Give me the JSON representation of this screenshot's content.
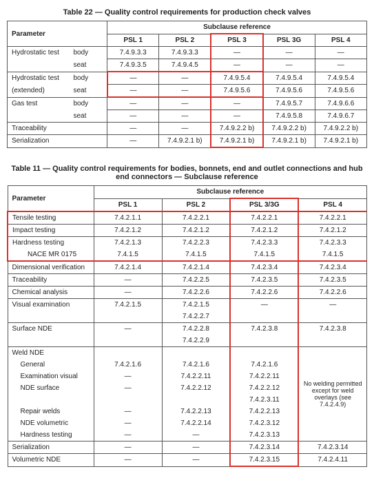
{
  "table22": {
    "title": "Table 22 — Quality control requirements for production check valves",
    "param_label": "Parameter",
    "subclause_label": "Subclause reference",
    "cols": [
      "PSL 1",
      "PSL 2",
      "PSL 3",
      "PSL 3G",
      "PSL 4"
    ],
    "rows": [
      {
        "p": "Hydrostatic test",
        "sub": "body",
        "v": [
          "7.4.9.3.3",
          "7.4.9.3.3",
          "—",
          "—",
          "—"
        ]
      },
      {
        "p": "",
        "sub": "seat",
        "v": [
          "7.4.9.3.5",
          "7.4.9.4.5",
          "—",
          "—",
          "—"
        ]
      },
      {
        "p": "Hydrostatic test",
        "sub": "body",
        "v": [
          "—",
          "—",
          "7.4.9.5.4",
          "7.4.9.5.4",
          "7.4.9.5.4"
        ]
      },
      {
        "p": "(extended)",
        "sub": "seat",
        "v": [
          "—",
          "—",
          "7.4.9.5.6",
          "7.4.9.5.6",
          "7.4.9.5.6"
        ]
      },
      {
        "p": "Gas test",
        "sub": "body",
        "v": [
          "—",
          "—",
          "—",
          "7.4.9.5.7",
          "7.4.9.6.6"
        ]
      },
      {
        "p": "",
        "sub": "seat",
        "v": [
          "—",
          "—",
          "—",
          "7.4.9.5.8",
          "7.4.9.6.7"
        ]
      },
      {
        "p": "Traceability",
        "sub": "",
        "v": [
          "—",
          "—",
          "7.4.9.2.2 b)",
          "7.4.9.2.2 b)",
          "7.4.9.2.2 b)"
        ]
      },
      {
        "p": "Serialization",
        "sub": "",
        "v": [
          "—",
          "7.4.9.2.1 b)",
          "7.4.9.2.1 b)",
          "7.4.9.2.1 b)",
          "7.4.9.2.1 b)"
        ]
      }
    ]
  },
  "table11": {
    "title": "Table 11 — Quality control requirements for bodies, bonnets, end and outlet connections and hub end connectors — Subclause reference",
    "param_label": "Parameter",
    "subclause_label": "Subclause reference",
    "cols": [
      "PSL 1",
      "PSL 2",
      "PSL 3/3G",
      "PSL 4"
    ],
    "weld_note": "No welding permitted except for weld overlays (see 7.4.2.4.9)",
    "rows": [
      {
        "p": "Tensile testing",
        "v": [
          "7.4.2.1.1",
          "7.4.2.2.1",
          "7.4.2.2.1",
          "7.4.2.2.1"
        ],
        "hl": true
      },
      {
        "p": "Impact testing",
        "v": [
          "7.4.2.1.2",
          "7.4.2.1.2",
          "7.4.2.1.2",
          "7.4.2.1.2"
        ],
        "hl": true
      },
      {
        "p": "Hardness testing",
        "v": [
          "7.4.2.1.3",
          "7.4.2.2.3",
          "7.4.2.3.3",
          "7.4.2.3.3"
        ],
        "hl": true,
        "nob": true
      },
      {
        "p": "NACE MR 0175",
        "v": [
          "7.4.1.5",
          "7.4.1.5",
          "7.4.1.5",
          "7.4.1.5"
        ],
        "hl": true,
        "ind": 2,
        "not": true
      },
      {
        "p": "Dimensional verification",
        "v": [
          "7.4.2.1.4",
          "7.4.2.1.4",
          "7.4.2.3.4",
          "7.4.2.3.4"
        ]
      },
      {
        "p": "Traceability",
        "v": [
          "—",
          "7.4.2.2.5",
          "7.4.2.3.5",
          "7.4.2.3.5"
        ]
      },
      {
        "p": "Chemical analysis",
        "v": [
          "—",
          "7.4.2.2.6",
          "7.4.2.2.6",
          "7.4.2.2.6"
        ]
      },
      {
        "p": "Visual examination",
        "v": [
          "7.4.2.1.5",
          "7.4.2.1.5",
          "—",
          "—"
        ],
        "nob": true
      },
      {
        "p": "",
        "v": [
          "",
          "7.4.2.2.7",
          "",
          ""
        ],
        "not": true
      },
      {
        "p": "Surface NDE",
        "v": [
          "—",
          "7.4.2.2.8",
          "7.4.2.3.8",
          "7.4.2.3.8"
        ],
        "nob": true
      },
      {
        "p": "",
        "v": [
          "",
          "7.4.2.2.9",
          "",
          ""
        ],
        "not": true
      },
      {
        "p": "Weld NDE",
        "v": [
          "",
          "",
          "",
          ""
        ],
        "nob": true,
        "weldstart": true
      },
      {
        "p": "General",
        "v": [
          "7.4.2.1.6",
          "7.4.2.1.6",
          "7.4.2.1.6",
          ""
        ],
        "ind": 1,
        "nob": true,
        "not": true
      },
      {
        "p": "Examination visual",
        "v": [
          "—",
          "7.4.2.2.11",
          "7.4.2.2.11",
          ""
        ],
        "ind": 1,
        "nob": true,
        "not": true
      },
      {
        "p": "NDE surface",
        "v": [
          "—",
          "7.4.2.2.12",
          "7.4.2.2.12",
          ""
        ],
        "ind": 1,
        "nob": true,
        "not": true
      },
      {
        "p": "",
        "v": [
          "",
          "",
          "7.4.2.3.11",
          ""
        ],
        "nob": true,
        "not": true
      },
      {
        "p": "Repair welds",
        "v": [
          "—",
          "7.4.2.2.13",
          "7.4.2.2.13",
          ""
        ],
        "ind": 1,
        "nob": true,
        "not": true
      },
      {
        "p": "NDE volumetric",
        "v": [
          "—",
          "7.4.2.2.14",
          "7.4.2.3.12",
          ""
        ],
        "ind": 1,
        "nob": true,
        "not": true
      },
      {
        "p": "Hardness testing",
        "v": [
          "—",
          "—",
          "7.4.2.3.13",
          ""
        ],
        "ind": 1,
        "not": true
      },
      {
        "p": "Serialization",
        "v": [
          "—",
          "—",
          "7.4.2.3.14",
          "7.4.2.3.14"
        ]
      },
      {
        "p": "Volumetric NDE",
        "v": [
          "—",
          "—",
          "7.4.2.3.15",
          "7.4.2.4.11"
        ]
      }
    ]
  }
}
